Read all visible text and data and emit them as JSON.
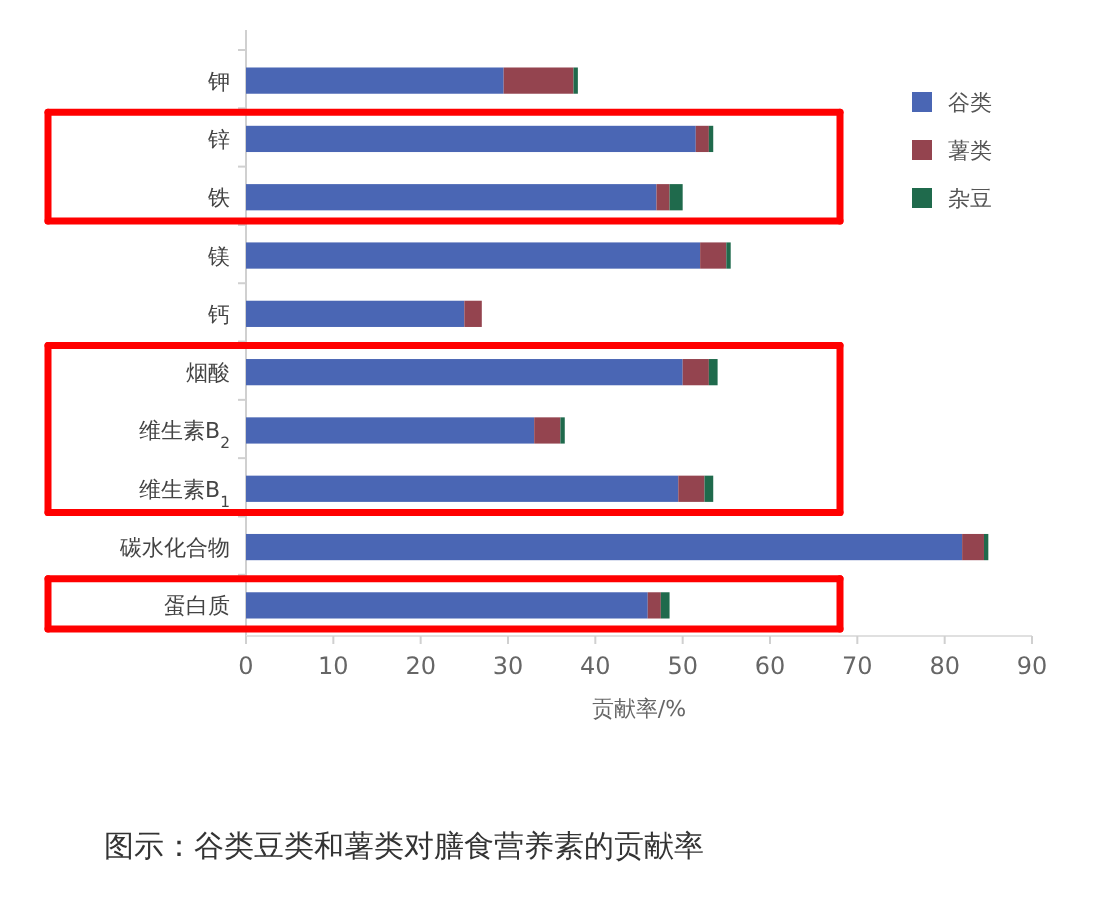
{
  "chart_data": {
    "type": "bar",
    "orientation": "horizontal",
    "stacked": true,
    "title": "图示：谷类豆类和薯类对膳食营养素的贡献率",
    "xlabel": "贡献率/%",
    "categories": [
      "钾",
      "锌",
      "铁",
      "镁",
      "钙",
      "烟酸",
      "维生素B$_{2}$",
      "维生素B$_{1}$",
      "碳水化合物",
      "蛋白质"
    ],
    "series": [
      {
        "name": "谷类",
        "color": "#4a66b4",
        "values": [
          29.5,
          51.5,
          47,
          52,
          25,
          50,
          33,
          49.5,
          82,
          46
        ]
      },
      {
        "name": "薯类",
        "color": "#94444f",
        "values": [
          8,
          1.5,
          1.5,
          3,
          2,
          3,
          3,
          3,
          2.5,
          1.5
        ]
      },
      {
        "name": "杂豆",
        "color": "#1f6a4c",
        "values": [
          0.5,
          0.5,
          1.5,
          0.5,
          0,
          1,
          0.5,
          1,
          0.5,
          1
        ]
      }
    ],
    "xlim": [
      0,
      90
    ],
    "xticks": [
      0,
      10,
      20,
      30,
      40,
      50,
      60,
      70,
      80,
      90
    ],
    "grid": false,
    "legend": "top right"
  }
}
